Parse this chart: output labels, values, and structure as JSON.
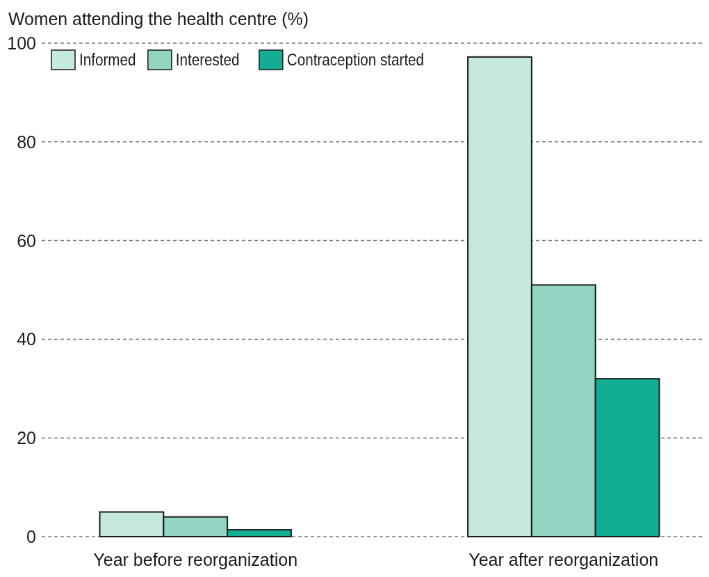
{
  "chart_data": {
    "type": "bar",
    "ylabel": "Women attending the health centre (%)",
    "categories": [
      "Year before reorganization",
      "Year after reorganization"
    ],
    "series": [
      {
        "name": "Informed",
        "color": "#c5e8df",
        "values": [
          5,
          97.2
        ]
      },
      {
        "name": "Interested",
        "color": "#93d4c3",
        "values": [
          4,
          51
        ]
      },
      {
        "name": "Contraception started",
        "color": "#13ad94",
        "values": [
          1.4,
          32
        ]
      }
    ],
    "ylim": [
      0,
      100
    ],
    "yticks": [
      0,
      20,
      40,
      60,
      80,
      100
    ],
    "grid": "y",
    "legend": "top left"
  }
}
